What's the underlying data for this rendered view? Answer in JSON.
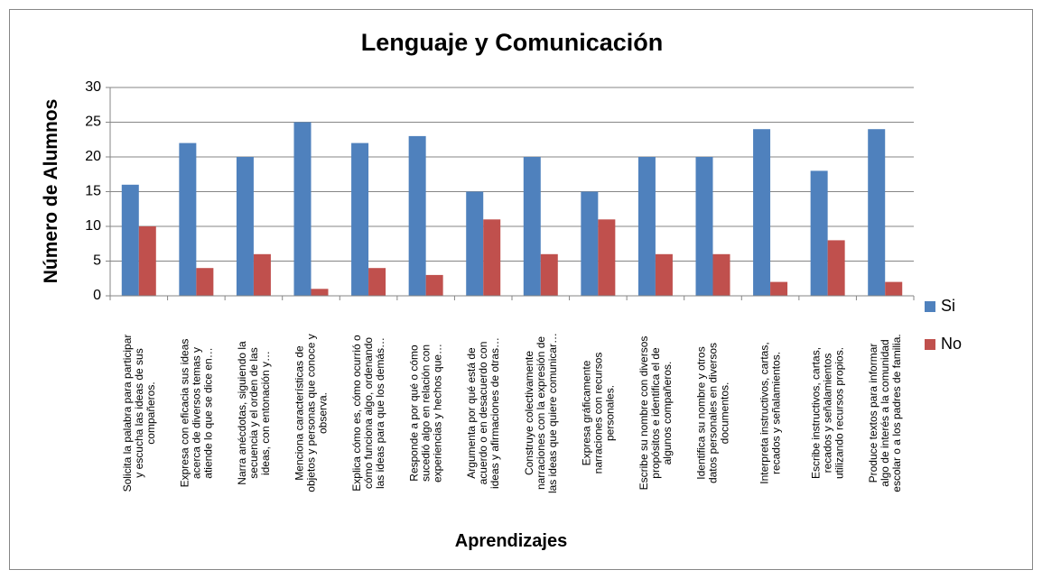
{
  "chart_data": {
    "type": "bar",
    "title": "Lenguaje y Comunicación",
    "x_label": "Aprendizajes",
    "y_label": "Número de Alumnos",
    "categories": [
      [
        "Solicita la palabra para participar",
        "y escucha las ideas de sus",
        "compañeros."
      ],
      [
        "Expresa con eficacia sus ideas",
        "acerca de diversos temas y",
        "atiende lo que se dice en…"
      ],
      [
        "Narra anécdotas, siguiendo la",
        "secuencia y el orden de las",
        "ideas, con entonación y…"
      ],
      [
        "Menciona características de",
        "objetos y personas que conoce y",
        "observa."
      ],
      [
        "Explica cómo es, cómo ocurrió o",
        "cómo funciona algo, ordenando",
        "las ideas para que los demás…"
      ],
      [
        "Responde a por qué o cómo",
        "sucedió algo en relación con",
        "experiencias y hechos que…"
      ],
      [
        "Argumenta por qué está de",
        "acuerdo o en desacuerdo con",
        "ideas y afirmaciones de otras…"
      ],
      [
        "Construye colectivamente",
        "narraciones con la expresión de",
        "las ideas que quiere comunicar…"
      ],
      [
        "Expresa gráficamente",
        "narraciones con recursos",
        "personales."
      ],
      [
        "Escribe su nombre con diversos",
        "propósitos e identifica el de",
        "algunos compañeros."
      ],
      [
        "Identifica su nombre y otros",
        "datos personales en diversos",
        "documentos."
      ],
      [
        "Interpreta instructivos, cartas,",
        "recados y señalamientos."
      ],
      [
        "Escribe instructivos, cartas,",
        "recados y señalamientos",
        "utilizando recursos propios."
      ],
      [
        "Produce textos para informar",
        "algo de interés a la comunidad",
        "escolar o a los padres de familia."
      ]
    ],
    "series": [
      {
        "name": "Si",
        "color": "#4f81bd",
        "values": [
          16,
          22,
          20,
          25,
          22,
          23,
          15,
          20,
          15,
          20,
          20,
          24,
          18,
          24
        ]
      },
      {
        "name": "No",
        "color": "#c0504d",
        "values": [
          10,
          4,
          6,
          1,
          4,
          3,
          11,
          6,
          11,
          6,
          6,
          2,
          8,
          2
        ]
      }
    ],
    "ylim": [
      0,
      30
    ],
    "yticks": [
      0,
      5,
      10,
      15,
      20,
      25,
      30
    ],
    "grid": true,
    "legend": "right"
  }
}
